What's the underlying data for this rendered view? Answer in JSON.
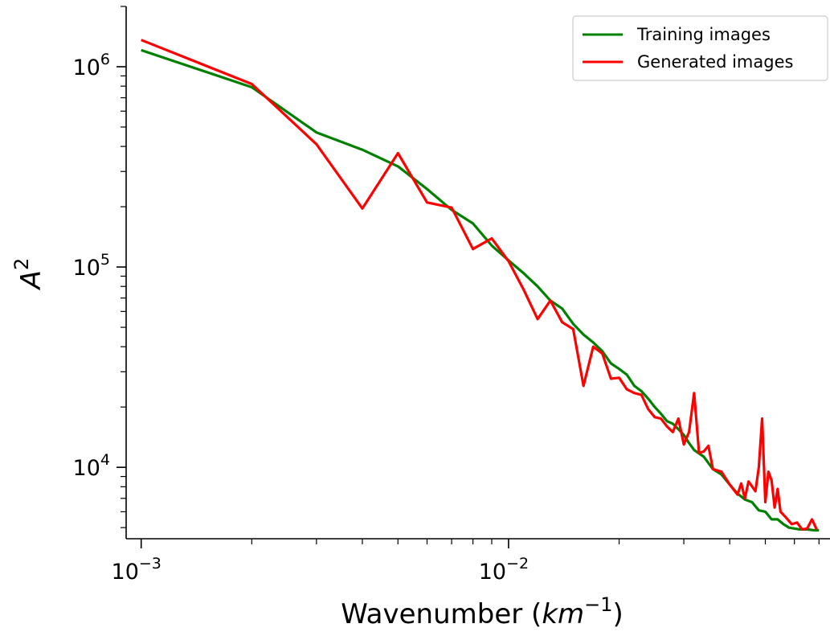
{
  "chart_data": {
    "type": "line",
    "title": "",
    "xlabel": {
      "base": "Wavenumber (",
      "var": "km",
      "exp": "−1",
      "close": ")"
    },
    "ylabel": {
      "var": "A",
      "exp": "2"
    },
    "xscale": "log",
    "yscale": "log",
    "xlim": [
      0.00091,
      0.075
    ],
    "ylim": [
      4400,
      2000000
    ],
    "grid": false,
    "legend_position": "top-right",
    "x_ticks": [
      {
        "value": 0.001,
        "base": "10",
        "exp": "−3"
      },
      {
        "value": 0.01,
        "base": "10",
        "exp": "−2"
      }
    ],
    "y_ticks": [
      {
        "value": 10000,
        "base": "10",
        "exp": "4"
      },
      {
        "value": 100000,
        "base": "10",
        "exp": "5"
      },
      {
        "value": 1000000,
        "base": "10",
        "exp": "6"
      }
    ],
    "series": [
      {
        "name": "Training images",
        "color": "#008000",
        "points": [
          [
            0.001,
            1210000
          ],
          [
            0.002,
            790000
          ],
          [
            0.003,
            470000
          ],
          [
            0.004,
            385000
          ],
          [
            0.005,
            318000
          ],
          [
            0.006,
            245000
          ],
          [
            0.007,
            193000
          ],
          [
            0.008,
            165000
          ],
          [
            0.009,
            128000
          ],
          [
            0.01,
            108000
          ],
          [
            0.011,
            93000
          ],
          [
            0.012,
            80000
          ],
          [
            0.013,
            68000
          ],
          [
            0.014,
            62000
          ],
          [
            0.015,
            52000
          ],
          [
            0.016,
            46000
          ],
          [
            0.017,
            42000
          ],
          [
            0.018,
            38000
          ],
          [
            0.019,
            33000
          ],
          [
            0.02,
            31000
          ],
          [
            0.021,
            29000
          ],
          [
            0.022,
            25500
          ],
          [
            0.023,
            24000
          ],
          [
            0.024,
            22000
          ],
          [
            0.025,
            20000
          ],
          [
            0.026,
            18500
          ],
          [
            0.027,
            17000
          ],
          [
            0.028,
            16500
          ],
          [
            0.029,
            15500
          ],
          [
            0.03,
            14500
          ],
          [
            0.031,
            13200
          ],
          [
            0.032,
            12200
          ],
          [
            0.034,
            11300
          ],
          [
            0.036,
            9800
          ],
          [
            0.038,
            9200
          ],
          [
            0.04,
            8200
          ],
          [
            0.042,
            7400
          ],
          [
            0.044,
            6900
          ],
          [
            0.046,
            6700
          ],
          [
            0.048,
            6100
          ],
          [
            0.05,
            6000
          ],
          [
            0.052,
            5500
          ],
          [
            0.054,
            5500
          ],
          [
            0.056,
            5200
          ],
          [
            0.058,
            5000
          ],
          [
            0.06,
            4950
          ],
          [
            0.062,
            4900
          ],
          [
            0.065,
            4900
          ],
          [
            0.068,
            4850
          ],
          [
            0.07,
            4850
          ]
        ]
      },
      {
        "name": "Generated images",
        "color": "#ff0000",
        "points": [
          [
            0.001,
            1360000
          ],
          [
            0.002,
            820000
          ],
          [
            0.003,
            410000
          ],
          [
            0.004,
            196000
          ],
          [
            0.005,
            370000
          ],
          [
            0.006,
            210000
          ],
          [
            0.007,
            198000
          ],
          [
            0.008,
            123000
          ],
          [
            0.009,
            139000
          ],
          [
            0.01,
            107000
          ],
          [
            0.011,
            77000
          ],
          [
            0.012,
            55000
          ],
          [
            0.013,
            68000
          ],
          [
            0.014,
            53000
          ],
          [
            0.015,
            49000
          ],
          [
            0.016,
            25500
          ],
          [
            0.017,
            40000
          ],
          [
            0.018,
            37000
          ],
          [
            0.019,
            27700
          ],
          [
            0.02,
            28000
          ],
          [
            0.021,
            24500
          ],
          [
            0.022,
            23500
          ],
          [
            0.023,
            23000
          ],
          [
            0.024,
            19500
          ],
          [
            0.025,
            17800
          ],
          [
            0.026,
            17500
          ],
          [
            0.027,
            16000
          ],
          [
            0.028,
            15000
          ],
          [
            0.029,
            17500
          ],
          [
            0.03,
            13000
          ],
          [
            0.031,
            15000
          ],
          [
            0.032,
            23500
          ],
          [
            0.033,
            11800
          ],
          [
            0.034,
            12000
          ],
          [
            0.035,
            12800
          ],
          [
            0.036,
            9800
          ],
          [
            0.038,
            9500
          ],
          [
            0.04,
            8200
          ],
          [
            0.042,
            7300
          ],
          [
            0.043,
            8300
          ],
          [
            0.044,
            7000
          ],
          [
            0.045,
            8500
          ],
          [
            0.047,
            7600
          ],
          [
            0.048,
            10000
          ],
          [
            0.049,
            17500
          ],
          [
            0.05,
            6700
          ],
          [
            0.051,
            9500
          ],
          [
            0.052,
            8600
          ],
          [
            0.053,
            6300
          ],
          [
            0.054,
            7800
          ],
          [
            0.055,
            6000
          ],
          [
            0.057,
            5600
          ],
          [
            0.059,
            5200
          ],
          [
            0.061,
            5300
          ],
          [
            0.063,
            4900
          ],
          [
            0.065,
            4950
          ],
          [
            0.067,
            5500
          ],
          [
            0.069,
            4900
          ]
        ]
      }
    ]
  }
}
